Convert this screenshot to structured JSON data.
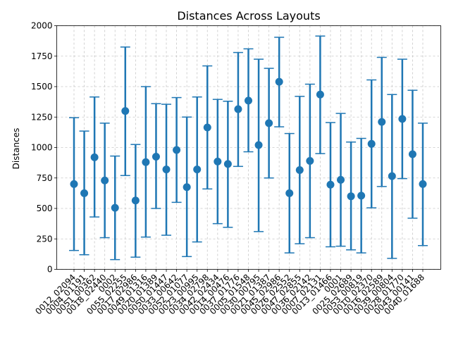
{
  "chart_data": {
    "type": "scatter",
    "title": "Distances Across Layouts",
    "xlabel": "",
    "ylabel": "Distances",
    "ylim": [
      0,
      2000
    ],
    "yticks": [
      0,
      250,
      500,
      750,
      1000,
      1250,
      1500,
      1750,
      2000
    ],
    "grid": true,
    "color": "#1f77b4",
    "categories": [
      "0012_02094",
      "0004_01191",
      "0051_00362",
      "0018_02440",
      "0002",
      "0055_02255",
      "0017_02986",
      "0049_01316",
      "0020_01389",
      "0050_01447",
      "0033_00642",
      "0052_01077",
      "0023_00995",
      "0034_02798",
      "0042_02434",
      "0014_00476",
      "0037_01776",
      "0005_01548",
      "0030_00795",
      "0021_01387",
      "0045_02986",
      "0026_02552",
      "0047_02855",
      "0036_02142",
      "0007_02131",
      "0013_01466",
      "0001",
      "0025_02689",
      "0053_00819",
      "0010_02370",
      "0016_02589",
      "0039_00804",
      "0028_01770",
      "0043_00141",
      "0040_01688"
    ],
    "series": [
      {
        "values": [
          700,
          625,
          920,
          730,
          505,
          1300,
          565,
          880,
          925,
          820,
          980,
          675,
          820,
          1165,
          885,
          865,
          1315,
          1385,
          1020,
          1200,
          1540,
          625,
          815,
          890,
          1435,
          695,
          735,
          600,
          605,
          1030,
          1210,
          765,
          1235,
          945,
          700
        ],
        "err_low": [
          155,
          120,
          430,
          260,
          80,
          770,
          100,
          265,
          500,
          280,
          550,
          105,
          225,
          660,
          375,
          345,
          845,
          965,
          310,
          750,
          1170,
          135,
          210,
          260,
          950,
          185,
          190,
          160,
          135,
          505,
          680,
          90,
          745,
          420,
          195
        ],
        "err_high": [
          1245,
          1135,
          1415,
          1200,
          930,
          1825,
          1025,
          1500,
          1360,
          1355,
          1410,
          1250,
          1415,
          1670,
          1395,
          1380,
          1780,
          1810,
          1725,
          1650,
          1905,
          1115,
          1420,
          1520,
          1915,
          1205,
          1280,
          1045,
          1075,
          1555,
          1740,
          1435,
          1725,
          1470,
          1200
        ]
      }
    ]
  }
}
